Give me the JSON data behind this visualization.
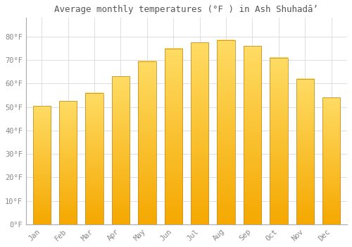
{
  "title": "Average monthly temperatures (°F ) in Ash Shuhadā’",
  "months": [
    "Jan",
    "Feb",
    "Mar",
    "Apr",
    "May",
    "Jun",
    "Jul",
    "Aug",
    "Sep",
    "Oct",
    "Nov",
    "Dec"
  ],
  "values": [
    50.5,
    52.5,
    56.0,
    63.0,
    69.5,
    75.0,
    77.5,
    78.5,
    76.0,
    71.0,
    62.0,
    54.0
  ],
  "bar_color_bottom": "#F5A800",
  "bar_color_top": "#FFD966",
  "bar_edge_color": "#C8922A",
  "ylim": [
    0,
    88
  ],
  "yticks": [
    0,
    10,
    20,
    30,
    40,
    50,
    60,
    70,
    80
  ],
  "ytick_labels": [
    "0°F",
    "10°F",
    "20°F",
    "30°F",
    "40°F",
    "50°F",
    "60°F",
    "70°F",
    "80°F"
  ],
  "background_color": "#FFFFFF",
  "grid_color": "#DDDDDD",
  "title_fontsize": 9,
  "tick_fontsize": 7.5,
  "tick_color": "#888888",
  "spine_color": "#AAAAAA"
}
